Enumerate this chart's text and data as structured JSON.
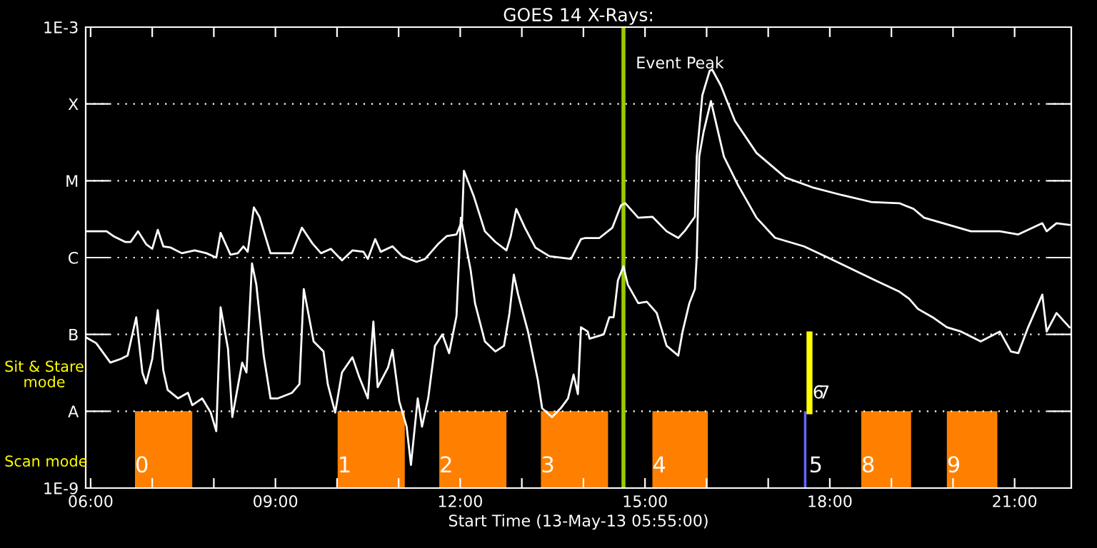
{
  "chart_data": {
    "type": "line",
    "title": "GOES 14 X-Rays:",
    "xlabel": "Start Time (13-May-13 05:55:00)",
    "xlim": [
      5.92,
      21.92
    ],
    "ylim": [
      1e-09,
      0.001
    ],
    "log": "y",
    "grid": "y",
    "legend": false,
    "xticks": [
      {
        "value": 6,
        "label": "06:00"
      },
      {
        "value": 7,
        "label": null
      },
      {
        "value": 8,
        "label": null
      },
      {
        "value": 9,
        "label": "09:00"
      },
      {
        "value": 10,
        "label": null
      },
      {
        "value": 11,
        "label": null
      },
      {
        "value": 12,
        "label": "12:00"
      },
      {
        "value": 13,
        "label": null
      },
      {
        "value": 14,
        "label": null
      },
      {
        "value": 15,
        "label": "15:00"
      },
      {
        "value": 16,
        "label": null
      },
      {
        "value": 17,
        "label": null
      },
      {
        "value": 18,
        "label": "18:00"
      },
      {
        "value": 19,
        "label": null
      },
      {
        "value": 20,
        "label": null
      },
      {
        "value": 21,
        "label": "21:00"
      }
    ],
    "yticks": [
      {
        "value": 1e-09,
        "label": "1E-9"
      },
      {
        "value": 1e-08,
        "label": "A"
      },
      {
        "value": 1e-07,
        "label": "B"
      },
      {
        "value": 1e-06,
        "label": "C"
      },
      {
        "value": 1e-05,
        "label": "M"
      },
      {
        "value": 0.0001,
        "label": "X"
      },
      {
        "value": 0.001,
        "label": "1E-3"
      }
    ],
    "series": [
      {
        "color": "#ffffff",
        "x": [
          5.92,
          6.26,
          6.37,
          6.56,
          6.65,
          6.77,
          6.9,
          7.0,
          7.09,
          7.18,
          7.3,
          7.48,
          7.69,
          7.88,
          8.04,
          8.11,
          8.27,
          8.39,
          8.48,
          8.55,
          8.65,
          8.74,
          8.92,
          9.27,
          9.43,
          9.6,
          9.74,
          9.9,
          10.08,
          10.25,
          10.43,
          10.5,
          10.62,
          10.71,
          10.9,
          11.06,
          11.29,
          11.43,
          11.64,
          11.78,
          11.94,
          12.03,
          12.06,
          12.22,
          12.4,
          12.57,
          12.75,
          12.82,
          12.91,
          13.05,
          13.22,
          13.45,
          13.8,
          13.96,
          14.03,
          14.26,
          14.47,
          14.61,
          14.68,
          14.89,
          15.12,
          15.35,
          15.54,
          15.65,
          15.81,
          15.84,
          15.93,
          16.05,
          16.09,
          16.23,
          16.46,
          16.81,
          17.28,
          17.74,
          18.2,
          18.67,
          19.13,
          19.36,
          19.53,
          20.29,
          20.76,
          21.06,
          21.45,
          21.52,
          21.68,
          21.89
        ],
        "values": [
          2.2e-06,
          2.2e-06,
          1.9e-06,
          1.6e-06,
          1.6e-06,
          2.2e-06,
          1.5e-06,
          1.3e-06,
          2.3e-06,
          1.4e-06,
          1.35e-06,
          1.14e-06,
          1.24e-06,
          1.14e-06,
          1e-06,
          2.1e-06,
          1.09e-06,
          1.14e-06,
          1.4e-06,
          1.19e-06,
          4.5e-06,
          3.4e-06,
          1.14e-06,
          1.14e-06,
          2.45e-06,
          1.53e-06,
          1.14e-06,
          1.3e-06,
          9.2e-07,
          1.24e-06,
          1.19e-06,
          9.6e-07,
          1.74e-06,
          1.19e-06,
          1.4e-06,
          1.04e-06,
          8.8e-07,
          9.6e-07,
          1.5e-06,
          1.9e-06,
          2e-06,
          3e-06,
          1.35e-05,
          6.3e-06,
          2.2e-06,
          1.6e-06,
          1.24e-06,
          1.9e-06,
          4.3e-06,
          2.45e-06,
          1.35e-06,
          1.04e-06,
          9.6e-07,
          1.74e-06,
          1.8e-06,
          1.8e-06,
          2.45e-06,
          4.8e-06,
          5.1e-06,
          3.3e-06,
          3.4e-06,
          2.2e-06,
          1.8e-06,
          2.25e-06,
          3.4e-06,
          2.07e-05,
          0.000129,
          0.00027,
          0.00028,
          0.000174,
          6e-05,
          2.3e-05,
          1.1e-05,
          8.1e-06,
          6.5e-06,
          5.3e-06,
          5.1e-06,
          4.3e-06,
          3.3e-06,
          2.2e-06,
          2.2e-06,
          2e-06,
          2.8e-06,
          2.2e-06,
          2.8e-06,
          2.66e-06
        ]
      },
      {
        "color": "#ffffff",
        "x": [
          5.92,
          6.09,
          6.32,
          6.49,
          6.6,
          6.74,
          6.84,
          6.9,
          7.0,
          7.09,
          7.18,
          7.25,
          7.42,
          7.58,
          7.65,
          7.81,
          7.95,
          8.04,
          8.11,
          8.23,
          8.3,
          8.46,
          8.53,
          8.62,
          8.69,
          8.81,
          8.92,
          9.04,
          9.27,
          9.39,
          9.46,
          9.62,
          9.78,
          9.85,
          9.97,
          10.08,
          10.25,
          10.36,
          10.5,
          10.59,
          10.66,
          10.83,
          10.9,
          11.01,
          11.13,
          11.2,
          11.31,
          11.38,
          11.48,
          11.59,
          11.71,
          11.82,
          11.94,
          12.01,
          12.17,
          12.24,
          12.4,
          12.57,
          12.71,
          12.8,
          12.87,
          12.94,
          13.1,
          13.26,
          13.33,
          13.49,
          13.63,
          13.75,
          13.84,
          13.91,
          13.96,
          14.07,
          14.1,
          14.33,
          14.42,
          14.49,
          14.56,
          14.65,
          14.72,
          14.89,
          15.03,
          15.19,
          15.35,
          15.54,
          15.61,
          15.72,
          15.81,
          15.84,
          15.88,
          15.95,
          16.07,
          16.28,
          16.51,
          16.81,
          17.11,
          17.58,
          17.97,
          18.74,
          19.13,
          19.29,
          19.43,
          19.67,
          19.9,
          20.13,
          20.45,
          20.76,
          20.94,
          21.06,
          21.22,
          21.45,
          21.52,
          21.68,
          21.89
        ],
        "values": [
          9.2e-08,
          7.7e-08,
          4.3e-08,
          4.8e-08,
          5.3e-08,
          1.67e-07,
          3.2e-08,
          2.3e-08,
          4.8e-08,
          2.07e-07,
          3.4e-08,
          1.9e-08,
          1.47e-08,
          1.74e-08,
          1.2e-08,
          1.47e-08,
          9.6e-09,
          5.5e-09,
          2.25e-07,
          6.5e-08,
          8.4e-09,
          4.3e-08,
          3.2e-08,
          8.4e-07,
          4.45e-07,
          5.3e-08,
          1.47e-08,
          1.47e-08,
          1.74e-08,
          2.25e-08,
          3.9e-07,
          8.1e-08,
          6e-08,
          2.25e-08,
          9.6e-09,
          3.2e-08,
          5.05e-08,
          2.8e-08,
          1.47e-08,
          1.47e-07,
          2.06e-08,
          3.75e-08,
          6.3e-08,
          1.35e-08,
          6.3e-09,
          2e-09,
          1.47e-08,
          6.3e-09,
          1.47e-08,
          7.1e-08,
          1e-07,
          5.7e-08,
          1.74e-07,
          3.3e-06,
          6.8e-07,
          2.55e-07,
          8.1e-08,
          6e-08,
          7.1e-08,
          1.9e-07,
          6e-07,
          3.3e-07,
          1.09e-07,
          2.55e-08,
          1.09e-08,
          8.4e-09,
          1.09e-08,
          1.47e-08,
          3e-08,
          1.67e-08,
          1.24e-07,
          1.09e-07,
          8.8e-08,
          1e-07,
          1.67e-07,
          1.67e-07,
          5.05e-07,
          7.7e-07,
          4.45e-07,
          2.55e-07,
          2.66e-07,
          1.9e-07,
          7.1e-08,
          5.3e-08,
          1.09e-07,
          2.55e-07,
          3.9e-07,
          1.04e-06,
          2.07e-05,
          4.3e-05,
          0.000109,
          2.07e-05,
          8.8e-06,
          3.3e-06,
          1.81e-06,
          1.4e-06,
          1e-06,
          5.05e-07,
          3.6e-07,
          2.9e-07,
          2.15e-07,
          1.67e-07,
          1.24e-07,
          1.09e-07,
          8.1e-08,
          1.09e-07,
          6e-08,
          5.7e-08,
          1.24e-07,
          3.3e-07,
          1.09e-07,
          1.9e-07,
          1.24e-07
        ]
      },
      {
        "color": "#ffff00",
        "x": [
          17.67,
          17.67
        ],
        "values": [
          1e-08,
          1e-07
        ]
      }
    ],
    "ref_lines": [
      {
        "axis": "x",
        "value": 14.65,
        "label": "Event Peak",
        "color": "#99cc00"
      }
    ],
    "bands": [
      {
        "axis": "x",
        "from": 6.72,
        "to": 7.65,
        "label": "0",
        "color": "#ff8000"
      },
      {
        "axis": "x",
        "from": 10.01,
        "to": 11.1,
        "label": "1",
        "color": "#ff8000"
      },
      {
        "axis": "x",
        "from": 11.66,
        "to": 12.75,
        "label": "2",
        "color": "#ff8000"
      },
      {
        "axis": "x",
        "from": 13.31,
        "to": 14.4,
        "label": "3",
        "color": "#ff8000"
      },
      {
        "axis": "x",
        "from": 15.12,
        "to": 16.02,
        "label": "4",
        "color": "#ff8000"
      },
      {
        "axis": "x",
        "from": 17.58,
        "to": 17.62,
        "label": "5",
        "color": "#6666ff"
      },
      {
        "axis": "x",
        "from": 18.51,
        "to": 19.32,
        "label": "8",
        "color": "#ff8000"
      },
      {
        "axis": "x",
        "from": 19.9,
        "to": 20.72,
        "label": "9",
        "color": "#ff8000"
      }
    ],
    "annotations": [
      {
        "text": "6",
        "x": 17.72,
        "y": 1.7e-08
      },
      {
        "text": "7",
        "x": 17.82,
        "y": 1.7e-08
      },
      "Sit & Stare\nmode",
      "Scan mode"
    ]
  }
}
